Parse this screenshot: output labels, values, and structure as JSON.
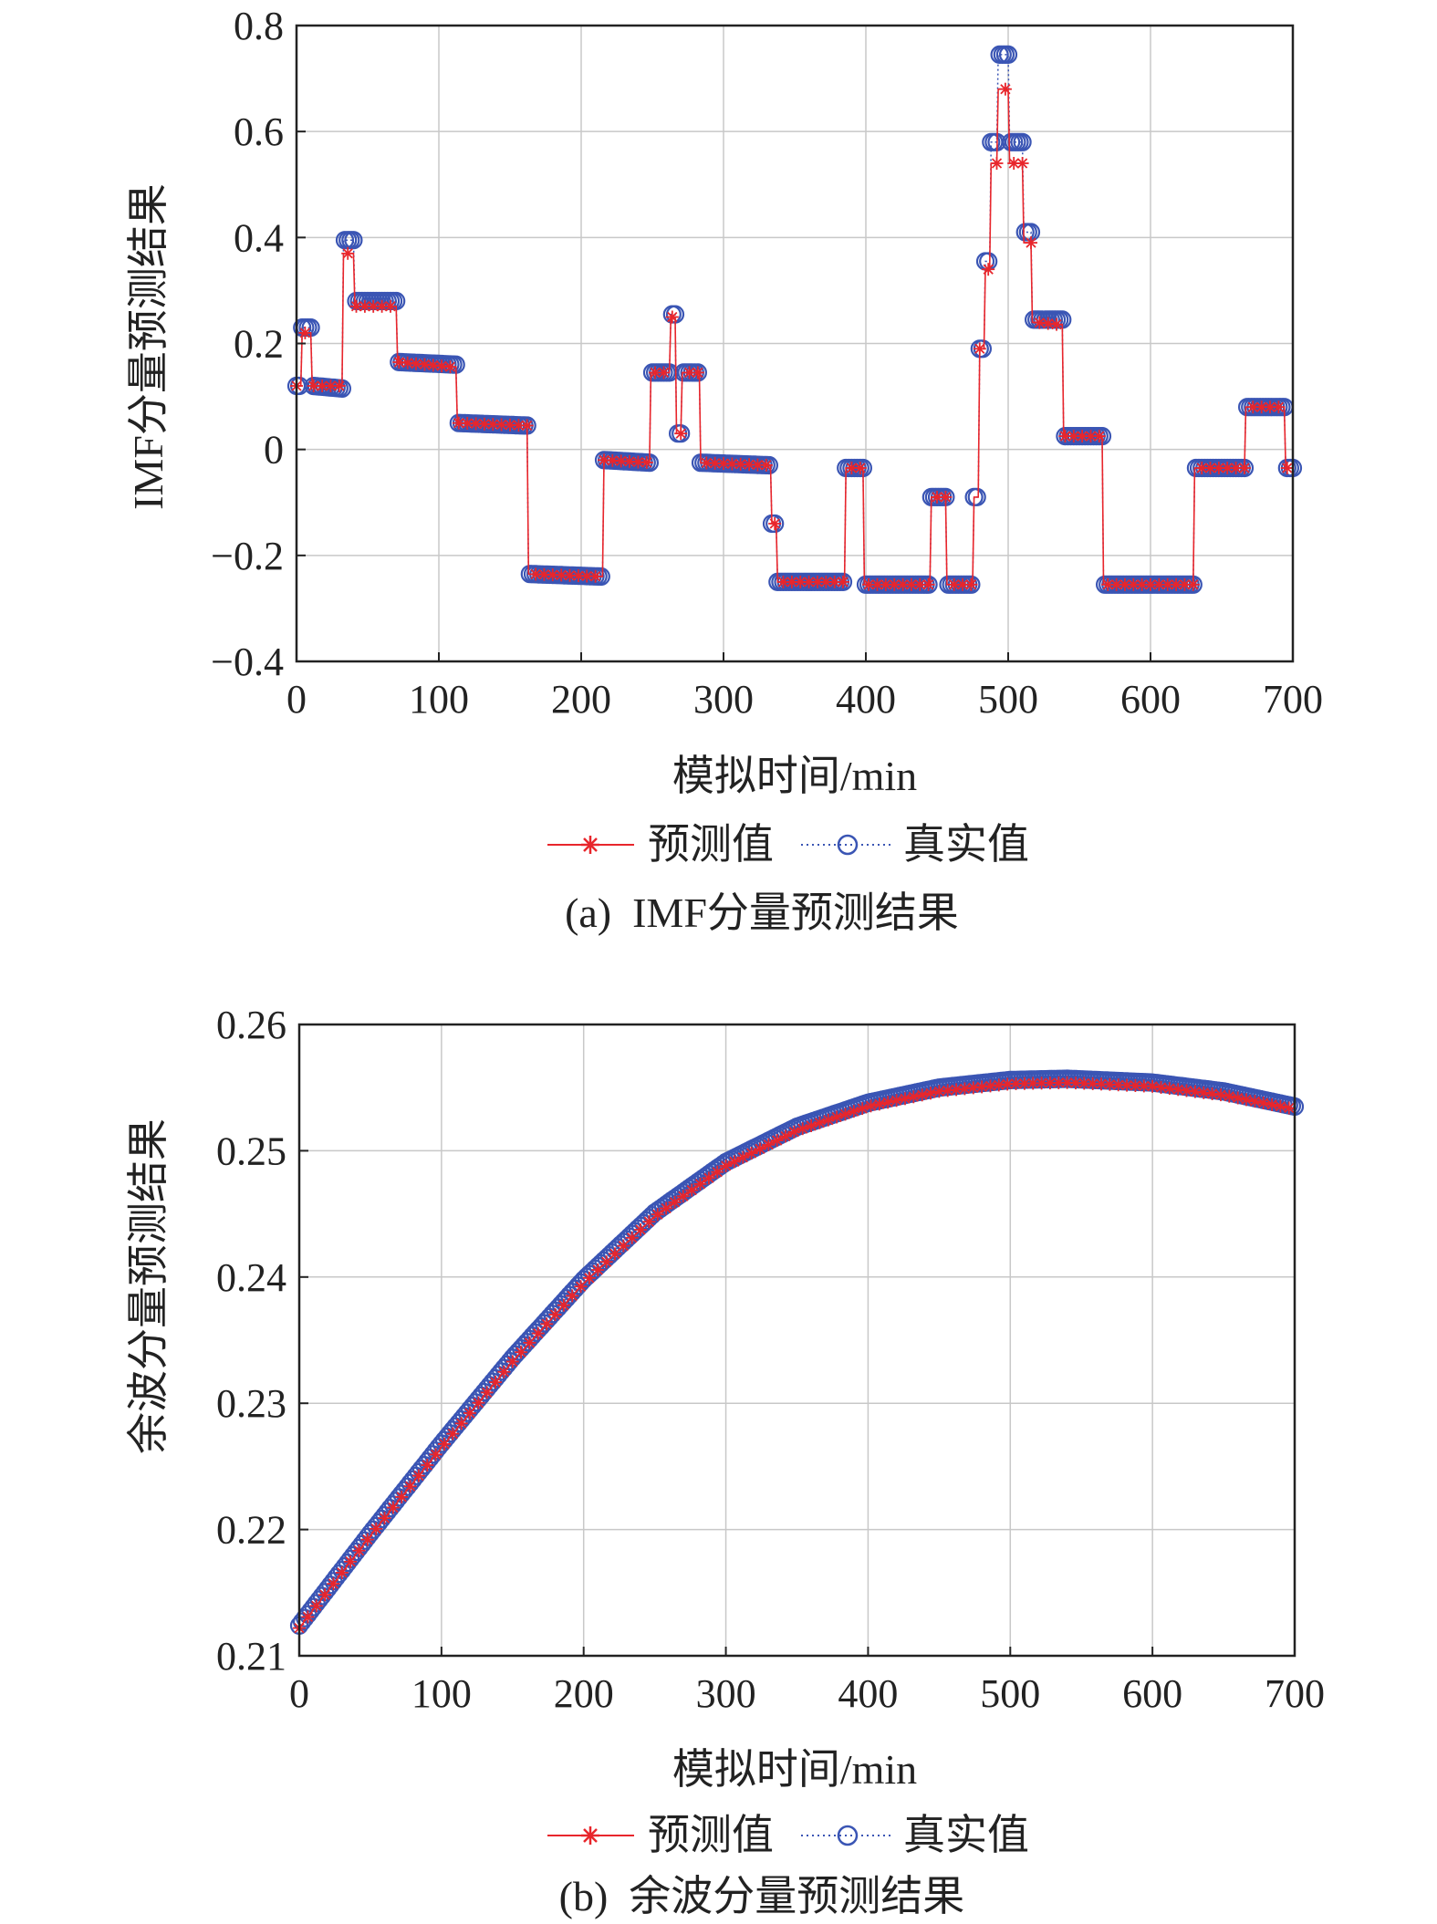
{
  "chart_data": [
    {
      "type": "line",
      "caption": "(a)  IMF分量预测结果",
      "xlabel": "模拟时间/min",
      "ylabel": "IMF分量预测结果",
      "xlim": [
        0,
        700
      ],
      "ylim": [
        -0.4,
        0.8
      ],
      "xticks": [
        0,
        100,
        200,
        300,
        400,
        500,
        600,
        700
      ],
      "xtick_labels": [
        "0",
        "100",
        "200",
        "300",
        "400",
        "500",
        "600",
        "700"
      ],
      "yticks": [
        -0.4,
        -0.2,
        0,
        0.2,
        0.4,
        0.6,
        0.8
      ],
      "ytick_labels": [
        "−0.4",
        "−0.2",
        "0",
        "0.2",
        "0.4",
        "0.6",
        "0.8"
      ],
      "grid": true,
      "legend_position": "bottom",
      "series": [
        {
          "name": "预测值",
          "color": "#e8262c",
          "marker": "asterisk",
          "line": "solid",
          "x": [
            0,
            3,
            4,
            10,
            11,
            32,
            33,
            40,
            41,
            70,
            71,
            112,
            113,
            162,
            163,
            215,
            216,
            248,
            249,
            262,
            263,
            266,
            267,
            270,
            271,
            283,
            284,
            333,
            334,
            337,
            338,
            385,
            386,
            398,
            399,
            445,
            446,
            456,
            457,
            475,
            476,
            479,
            480,
            483,
            484,
            487,
            488,
            492,
            493,
            500,
            501,
            510,
            511,
            516,
            517,
            518,
            519,
            538,
            539,
            566,
            567,
            630,
            631,
            666,
            667,
            694,
            695,
            700
          ],
          "y": [
            0.12,
            0.12,
            0.22,
            0.22,
            0.12,
            0.12,
            0.37,
            0.37,
            0.27,
            0.27,
            0.165,
            0.155,
            0.05,
            0.045,
            -0.235,
            -0.24,
            -0.02,
            -0.025,
            0.145,
            0.145,
            0.25,
            0.25,
            0.03,
            0.03,
            0.145,
            0.145,
            -0.025,
            -0.03,
            -0.14,
            -0.14,
            -0.25,
            -0.25,
            -0.035,
            -0.035,
            -0.255,
            -0.255,
            -0.09,
            -0.09,
            -0.255,
            -0.255,
            -0.09,
            -0.09,
            0.19,
            0.19,
            0.34,
            0.34,
            0.54,
            0.54,
            0.68,
            0.68,
            0.54,
            0.54,
            0.39,
            0.39,
            0.24,
            0.24,
            0.24,
            0.235,
            0.025,
            0.025,
            -0.255,
            -0.255,
            -0.035,
            -0.035,
            0.08,
            0.08,
            -0.035,
            -0.035
          ]
        },
        {
          "name": "真实值",
          "color": "#3a55b4",
          "marker": "circle",
          "line": "dotted",
          "x": [
            0,
            3,
            4,
            10,
            11,
            32,
            33,
            40,
            41,
            70,
            71,
            112,
            113,
            162,
            163,
            215,
            216,
            248,
            249,
            262,
            263,
            266,
            267,
            270,
            271,
            283,
            284,
            333,
            334,
            337,
            338,
            385,
            386,
            398,
            399,
            445,
            446,
            456,
            457,
            475,
            476,
            479,
            480,
            483,
            484,
            487,
            488,
            492,
            493,
            500,
            501,
            510,
            511,
            516,
            517,
            518,
            519,
            538,
            539,
            566,
            567,
            630,
            631,
            666,
            667,
            694,
            695,
            700
          ],
          "y": [
            0.12,
            0.12,
            0.23,
            0.23,
            0.12,
            0.115,
            0.395,
            0.395,
            0.28,
            0.28,
            0.165,
            0.16,
            0.05,
            0.045,
            -0.235,
            -0.24,
            -0.02,
            -0.025,
            0.145,
            0.145,
            0.255,
            0.255,
            0.03,
            0.03,
            0.145,
            0.145,
            -0.025,
            -0.03,
            -0.14,
            -0.14,
            -0.25,
            -0.25,
            -0.035,
            -0.035,
            -0.255,
            -0.255,
            -0.09,
            -0.09,
            -0.255,
            -0.255,
            -0.09,
            -0.09,
            0.19,
            0.19,
            0.355,
            0.355,
            0.58,
            0.58,
            0.745,
            0.745,
            0.58,
            0.58,
            0.41,
            0.41,
            0.245,
            0.245,
            0.245,
            0.245,
            0.025,
            0.025,
            -0.255,
            -0.255,
            -0.035,
            -0.035,
            0.08,
            0.08,
            -0.035,
            -0.035
          ]
        }
      ]
    },
    {
      "type": "line",
      "caption": "(b)  余波分量预测结果",
      "xlabel": "模拟时间/min",
      "ylabel": "余波分量预测结果",
      "xlim": [
        0,
        700
      ],
      "ylim": [
        0.21,
        0.26
      ],
      "xticks": [
        0,
        100,
        200,
        300,
        400,
        500,
        600,
        700
      ],
      "xtick_labels": [
        "0",
        "100",
        "200",
        "300",
        "400",
        "500",
        "600",
        "700"
      ],
      "yticks": [
        0.21,
        0.22,
        0.23,
        0.24,
        0.25,
        0.26
      ],
      "ytick_labels": [
        "0.21",
        "0.22",
        "0.23",
        "0.24",
        "0.25",
        "0.26"
      ],
      "grid": true,
      "legend_position": "bottom",
      "series": [
        {
          "name": "预测值",
          "color": "#e8262c",
          "marker": "asterisk",
          "line": "solid",
          "x": [
            0,
            50,
            100,
            150,
            200,
            250,
            300,
            350,
            400,
            450,
            500,
            540,
            600,
            650,
            700
          ],
          "y": [
            0.2122,
            0.2195,
            0.2265,
            0.2333,
            0.2395,
            0.2448,
            0.2488,
            0.2516,
            0.2535,
            0.2547,
            0.2553,
            0.2554,
            0.2551,
            0.2544,
            0.2533
          ]
        },
        {
          "name": "真实值",
          "color": "#3a55b4",
          "marker": "circle",
          "line": "dotted",
          "x": [
            0,
            50,
            100,
            150,
            200,
            250,
            300,
            350,
            400,
            450,
            500,
            540,
            600,
            650,
            700
          ],
          "y": [
            0.2124,
            0.2197,
            0.2268,
            0.2336,
            0.2398,
            0.2451,
            0.2491,
            0.2519,
            0.2538,
            0.255,
            0.2556,
            0.2557,
            0.2554,
            0.2547,
            0.2535
          ]
        }
      ]
    }
  ]
}
